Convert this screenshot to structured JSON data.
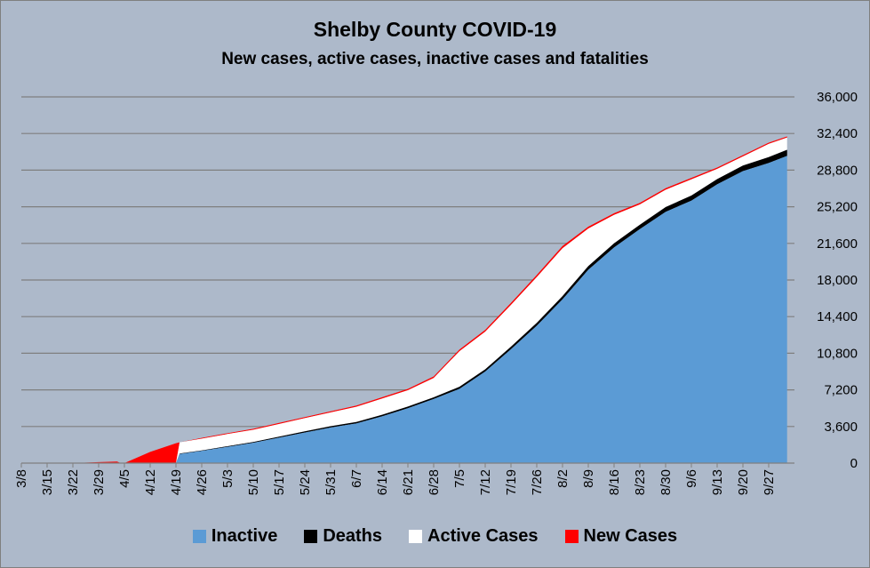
{
  "chart_data": {
    "type": "area",
    "title": "Shelby County COVID-19",
    "subtitle": "New cases, active cases, inactive cases and fatalities",
    "xlabel": "",
    "ylabel": "",
    "ylim": [
      0,
      36000
    ],
    "y_ticks": [
      "0",
      "3,600",
      "7,200",
      "10,800",
      "14,400",
      "18,000",
      "21,600",
      "25,200",
      "28,800",
      "32,400",
      "36,000"
    ],
    "x_ticks": [
      "3/8",
      "3/15",
      "3/22",
      "3/29",
      "4/5",
      "4/12",
      "4/19",
      "4/26",
      "5/3",
      "5/10",
      "5/17",
      "5/24",
      "5/31",
      "6/7",
      "6/14",
      "6/21",
      "6/28",
      "7/5",
      "7/12",
      "7/19",
      "7/26",
      "8/2",
      "8/9",
      "8/16",
      "8/23",
      "8/30",
      "9/6",
      "9/13",
      "9/20",
      "9/27"
    ],
    "grid": true,
    "legend_position": "bottom",
    "stacking": "stacked",
    "series": [
      {
        "name": "Inactive",
        "color": "#5b9bd5"
      },
      {
        "name": "Deaths",
        "color": "#000000"
      },
      {
        "name": "Active Cases",
        "color": "#ffffff"
      },
      {
        "name": "New Cases",
        "color": "#ff0000"
      }
    ],
    "x_days": [
      0,
      7,
      14,
      21,
      26,
      27,
      28,
      35,
      42,
      43,
      49,
      56,
      63,
      70,
      77,
      84,
      91,
      98,
      105,
      112,
      119,
      126,
      133,
      140,
      147,
      154,
      161,
      168,
      175,
      182,
      189,
      196,
      203,
      208
    ],
    "inactive": [
      0,
      0,
      0,
      0,
      0,
      0,
      0,
      0,
      0,
      900,
      1200,
      1600,
      2000,
      2500,
      3000,
      3500,
      3900,
      4600,
      5400,
      6300,
      7300,
      9000,
      11200,
      13500,
      16100,
      19000,
      21200,
      23000,
      24700,
      25800,
      27400,
      28700,
      29500,
      30200
    ],
    "deaths": [
      0,
      0,
      0,
      0,
      0,
      0,
      0,
      0,
      0,
      40,
      50,
      60,
      80,
      100,
      120,
      130,
      140,
      150,
      160,
      170,
      200,
      220,
      250,
      280,
      320,
      360,
      400,
      430,
      470,
      500,
      520,
      550,
      580,
      600
    ],
    "active": [
      0,
      0,
      0,
      0,
      0,
      0,
      0,
      0,
      0,
      1100,
      1150,
      1200,
      1200,
      1250,
      1300,
      1350,
      1500,
      1600,
      1600,
      1900,
      3500,
      3700,
      4100,
      4500,
      4700,
      3700,
      2800,
      2000,
      1700,
      1600,
      1000,
      900,
      1300,
      1200
    ],
    "new_cases": [
      0,
      0,
      0,
      100,
      150,
      0,
      0,
      1100,
      1950,
      0,
      80,
      80,
      90,
      100,
      100,
      110,
      120,
      130,
      140,
      150,
      160,
      180,
      200,
      210,
      220,
      180,
      160,
      150,
      150,
      140,
      130,
      130,
      120,
      110
    ]
  }
}
